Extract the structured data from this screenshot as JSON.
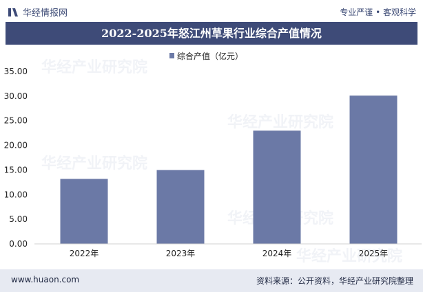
{
  "header": {
    "brand_name": "华经情报网",
    "slogan": "专业严谨 • 客观科学"
  },
  "watermark_text": "华经产业研究院",
  "chart_data": {
    "type": "bar",
    "title": "2022-2025年怒江州草果行业综合产值情况",
    "categories": [
      "2022年",
      "2023年",
      "2024年",
      "2025年"
    ],
    "series": [
      {
        "name": "综合产值（亿元）",
        "values": [
          13.2,
          15.0,
          23.0,
          30.1
        ],
        "color": "#6b79a6"
      }
    ],
    "ylim": [
      0,
      35
    ],
    "yticks": [
      "0.00",
      "5.00",
      "10.00",
      "15.00",
      "20.00",
      "25.00",
      "30.00",
      "35.00"
    ],
    "grid": false,
    "legend_position": "top-center"
  },
  "footer": {
    "website": "www.huaon.com",
    "source": "资料来源：公开资料，华经产业研究院整理"
  }
}
